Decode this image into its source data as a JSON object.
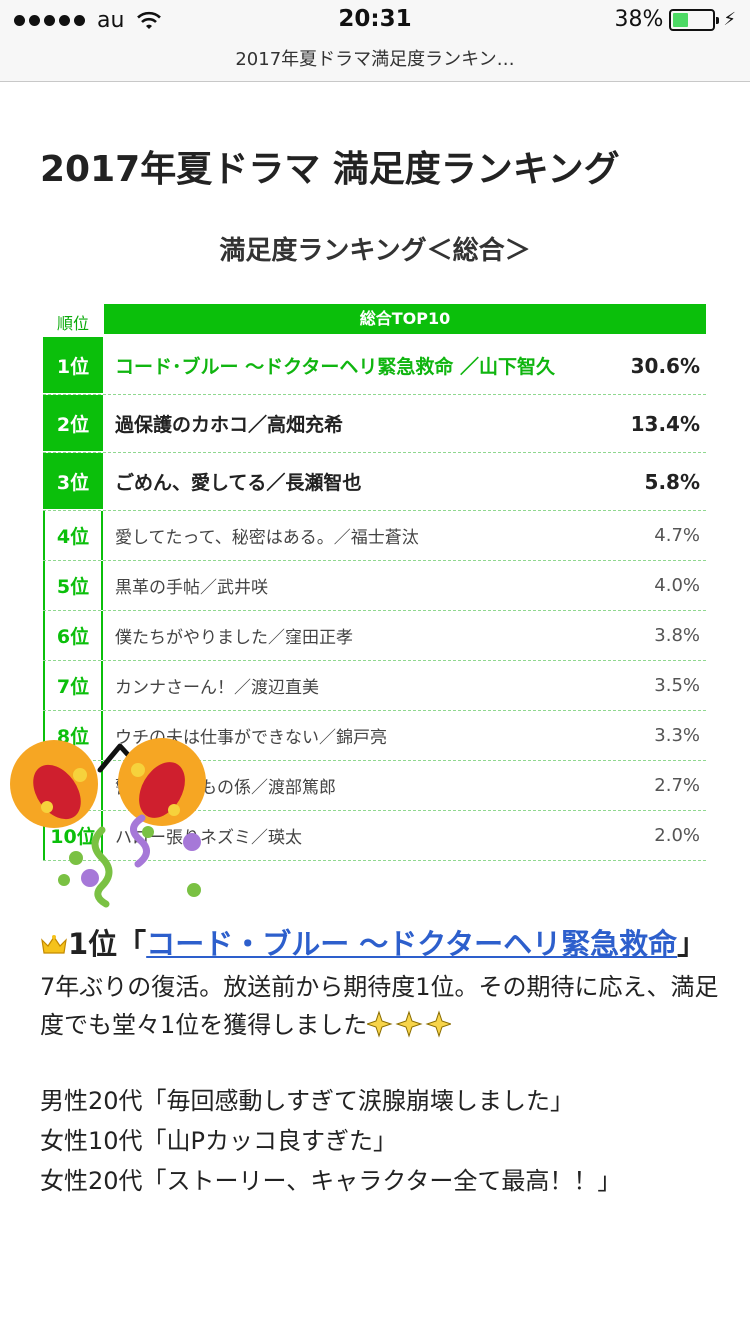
{
  "status_bar": {
    "carrier": "au",
    "time": "20:31",
    "battery_percent": "38%",
    "battery_level": 0.38
  },
  "browser": {
    "page_title": "2017年夏ドラマ満足度ランキン…"
  },
  "article": {
    "title": "2017年夏ドラマ 満足度ランキング",
    "ranking": {
      "heading": "満足度ランキング＜総合＞",
      "col_rank": "順位",
      "col_header": "総合TOP10",
      "rows": [
        {
          "rank": "1位",
          "title": "コード･ブルー 〜ドクターヘリ緊急救命 ／山下智久",
          "pct": "30.6%"
        },
        {
          "rank": "2位",
          "title": "過保護のカホコ／高畑充希",
          "pct": "13.4%"
        },
        {
          "rank": "3位",
          "title": "ごめん、愛してる／長瀬智也",
          "pct": "5.8%"
        },
        {
          "rank": "4位",
          "title": "愛してたって、秘密はある。／福士蒼汰",
          "pct": "4.7%"
        },
        {
          "rank": "5位",
          "title": "黒革の手帖／武井咲",
          "pct": "4.0%"
        },
        {
          "rank": "6位",
          "title": "僕たちがやりました／窪田正孝",
          "pct": "3.8%"
        },
        {
          "rank": "7位",
          "title": "カンナさーん！／渡辺直美",
          "pct": "3.5%"
        },
        {
          "rank": "8位",
          "title": "ウチの夫は仕事ができない／錦戸亮",
          "pct": "3.3%"
        },
        {
          "rank": "9位",
          "title": "警視庁いきもの係／渡部篤郎",
          "pct": "2.7%"
        },
        {
          "rank": "10位",
          "title": "ハロー張りネズミ／瑛太",
          "pct": "2.0%"
        }
      ]
    },
    "section": {
      "heading_prefix": "1位「",
      "heading_link": "コード・ブルー 〜ドクターヘリ緊急救命",
      "heading_suffix": "」",
      "para1": "7年ぶりの復活。放送前から期待度1位。その期待に応え、満足度でも堂々1位を獲得しました",
      "quote1": "男性20代「毎回感動しすぎて涙腺崩壊しました」",
      "quote2": "女性10代「山Pカッコ良すぎた」",
      "quote3": "女性20代「ストーリー、キャラクター全て最高！！」"
    }
  }
}
